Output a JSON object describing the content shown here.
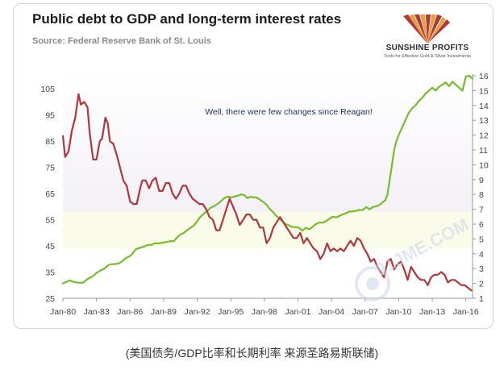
{
  "header": {
    "title": "Public debt to GDP and long-term interest rates",
    "source": "Source: Federal Reserve Bank of St. Louis"
  },
  "logo": {
    "name": "SUNSHINE PROFITS",
    "tagline": "Tools for Effective Gold & Silver Investments"
  },
  "caption": "(美国债务/GDP比率和长期利率 来源圣路易斯联储)",
  "watermark": {
    "text": "91JME.COM"
  },
  "colors": {
    "debt": "#b0373a",
    "rates": "#76bc2b",
    "band_top": "#f3f0f6",
    "band_bottom": "#fbfbea"
  },
  "chart_data": {
    "type": "line",
    "annotation": "Well, there were few changes since Reagan!",
    "x_ticks": [
      "Jan-80",
      "Jan-83",
      "Jan-86",
      "Jan-89",
      "Jan-92",
      "Jan-95",
      "Jan-98",
      "Jan-01",
      "Jan-04",
      "Jan-07",
      "Jan-10",
      "Jan-13",
      "Jan-16"
    ],
    "x_range": [
      1980.0,
      2016.6
    ],
    "y_left": {
      "ticks": [
        25,
        35,
        45,
        55,
        65,
        75,
        85,
        95,
        105
      ],
      "range": [
        25,
        110
      ]
    },
    "y_right": {
      "ticks": [
        1,
        2,
        3,
        4,
        5,
        6,
        7,
        8,
        9,
        10,
        11,
        12,
        13,
        14,
        15,
        16
      ],
      "range": [
        1,
        16
      ]
    },
    "series": [
      {
        "axis": "right",
        "x": [
          1980.0,
          1980.3,
          1980.6,
          1981.0,
          1981.4,
          1981.8,
          1982.2,
          1982.6,
          1983.0,
          1983.3,
          1983.7,
          1984.0,
          1984.3,
          1984.6,
          1985.0,
          1985.3,
          1985.6,
          1986.0,
          1986.2,
          1986.5,
          1986.9,
          1987.3,
          1987.6,
          1987.9,
          1988.2,
          1988.6,
          1988.9,
          1989.3,
          1989.6,
          1989.9,
          1990.2,
          1990.5,
          1990.8,
          1991.1,
          1991.4,
          1991.7,
          1992.0,
          1992.3,
          1992.6,
          1992.9,
          1993.2,
          1993.6,
          1993.9,
          1994.2,
          1994.5,
          1994.8,
          1995.0,
          1995.3,
          1995.6,
          1995.9,
          1996.2,
          1996.5,
          1996.8,
          1997.0,
          1997.3,
          1997.6,
          1997.9,
          1998.2,
          1998.5,
          1998.8,
          1999.0,
          1999.3,
          1999.6,
          1999.9,
          2000.2,
          2000.5,
          2000.8,
          2001.1,
          2001.4,
          2001.7,
          2002.0,
          2002.3,
          2002.6,
          2002.9,
          2003.2,
          2003.5,
          2003.8,
          2004.1,
          2004.4,
          2004.7,
          2005.0,
          2005.3,
          2005.6,
          2005.9,
          2006.2,
          2006.5,
          2006.8,
          2007.1,
          2007.4,
          2007.7,
          2008.0,
          2008.3,
          2008.6,
          2008.8,
          2009.0,
          2009.2,
          2009.4,
          2009.6,
          2009.8,
          2010.0,
          2010.3,
          2010.6,
          2010.9,
          2011.2,
          2011.5,
          2011.8,
          2012.1,
          2012.4,
          2012.7,
          2013.0,
          2013.3,
          2013.6,
          2013.9,
          2014.2,
          2014.5,
          2014.8,
          2015.1,
          2015.4,
          2015.7,
          2016.0,
          2016.3,
          2016.6
        ],
        "values": [
          2.0,
          2.1,
          2.2,
          2.1,
          2.05,
          2.05,
          2.3,
          2.45,
          2.7,
          2.85,
          3.0,
          3.2,
          3.3,
          3.3,
          3.35,
          3.5,
          3.7,
          3.85,
          4.0,
          4.3,
          4.4,
          4.5,
          4.6,
          4.6,
          4.7,
          4.7,
          4.75,
          4.8,
          4.85,
          4.85,
          5.1,
          5.3,
          5.4,
          5.6,
          5.75,
          5.9,
          6.2,
          6.5,
          6.7,
          6.9,
          7.1,
          7.25,
          7.4,
          7.6,
          7.8,
          7.85,
          7.8,
          7.85,
          7.9,
          8.0,
          7.95,
          7.75,
          7.85,
          7.8,
          7.8,
          7.65,
          7.5,
          7.3,
          7.0,
          6.8,
          6.6,
          6.4,
          6.2,
          6.0,
          5.9,
          5.8,
          5.8,
          5.75,
          5.55,
          5.75,
          5.65,
          5.8,
          6.0,
          6.1,
          6.1,
          6.2,
          6.35,
          6.5,
          6.45,
          6.55,
          6.65,
          6.75,
          6.85,
          6.85,
          6.9,
          6.95,
          6.95,
          7.15,
          7.0,
          7.15,
          7.2,
          7.3,
          7.5,
          7.6,
          8.0,
          9.0,
          10.0,
          11.0,
          11.6,
          12.0,
          12.5,
          13.0,
          13.5,
          13.8,
          14.0,
          14.3,
          14.5,
          14.8,
          15.0,
          15.2,
          15.0,
          15.25,
          15.4,
          15.55,
          15.3,
          15.6,
          15.4,
          15.2,
          15.0,
          15.95,
          16.0,
          15.8
        ]
      },
      {
        "axis": "left",
        "x": [
          1980.0,
          1980.2,
          1980.5,
          1980.8,
          1981.1,
          1981.4,
          1981.6,
          1981.9,
          1982.2,
          1982.4,
          1982.7,
          1983.0,
          1983.3,
          1983.5,
          1983.8,
          1984.0,
          1984.2,
          1984.5,
          1984.8,
          1985.1,
          1985.4,
          1985.7,
          1986.0,
          1986.3,
          1986.6,
          1986.9,
          1987.1,
          1987.4,
          1987.7,
          1988.0,
          1988.3,
          1988.6,
          1988.9,
          1989.2,
          1989.5,
          1989.8,
          1990.1,
          1990.4,
          1990.7,
          1991.0,
          1991.3,
          1991.6,
          1991.9,
          1992.2,
          1992.5,
          1992.8,
          1993.1,
          1993.4,
          1993.7,
          1994.0,
          1994.3,
          1994.6,
          1994.9,
          1995.2,
          1995.5,
          1995.8,
          1996.1,
          1996.4,
          1996.7,
          1997.0,
          1997.3,
          1997.6,
          1997.9,
          1998.2,
          1998.5,
          1998.8,
          1999.1,
          1999.4,
          1999.7,
          2000.0,
          2000.3,
          2000.6,
          2000.9,
          2001.2,
          2001.5,
          2001.8,
          2002.1,
          2002.4,
          2002.7,
          2003.0,
          2003.3,
          2003.6,
          2003.9,
          2004.2,
          2004.5,
          2004.8,
          2005.1,
          2005.4,
          2005.7,
          2006.0,
          2006.3,
          2006.6,
          2006.9,
          2007.2,
          2007.5,
          2007.8,
          2008.1,
          2008.4,
          2008.7,
          2009.0,
          2009.3,
          2009.6,
          2009.9,
          2010.2,
          2010.5,
          2010.8,
          2011.1,
          2011.4,
          2011.7,
          2012.0,
          2012.3,
          2012.6,
          2012.9,
          2013.2,
          2013.5,
          2013.8,
          2014.1,
          2014.4,
          2014.7,
          2015.0,
          2015.3,
          2015.6,
          2015.9,
          2016.2,
          2016.5
        ],
        "values": [
          87,
          79,
          81,
          89,
          94,
          103,
          99,
          100,
          98,
          88,
          78,
          78,
          85,
          86,
          94,
          92,
          85,
          84,
          80,
          75,
          70,
          68,
          62,
          61,
          61,
          67,
          70,
          70,
          67,
          70,
          71,
          66,
          66,
          69,
          69,
          65,
          63,
          65,
          68,
          68,
          65,
          63,
          62,
          61,
          61,
          59,
          56,
          55,
          51,
          51,
          55,
          59,
          63,
          60,
          57,
          53,
          55,
          57,
          57,
          55,
          55,
          52,
          52,
          46,
          48,
          52,
          54,
          56,
          54,
          52,
          50,
          48,
          48,
          50,
          46,
          48,
          46,
          44,
          43,
          40,
          42,
          46,
          43,
          44,
          43,
          44,
          43,
          45,
          47,
          45,
          48,
          47,
          44,
          42,
          39,
          40,
          37,
          35,
          33,
          39,
          40,
          36,
          38,
          39,
          36,
          32,
          37,
          35,
          33,
          32,
          32,
          30,
          33,
          34,
          34,
          35,
          34,
          31,
          32,
          32,
          31,
          30,
          30,
          29,
          28
        ]
      }
    ]
  }
}
